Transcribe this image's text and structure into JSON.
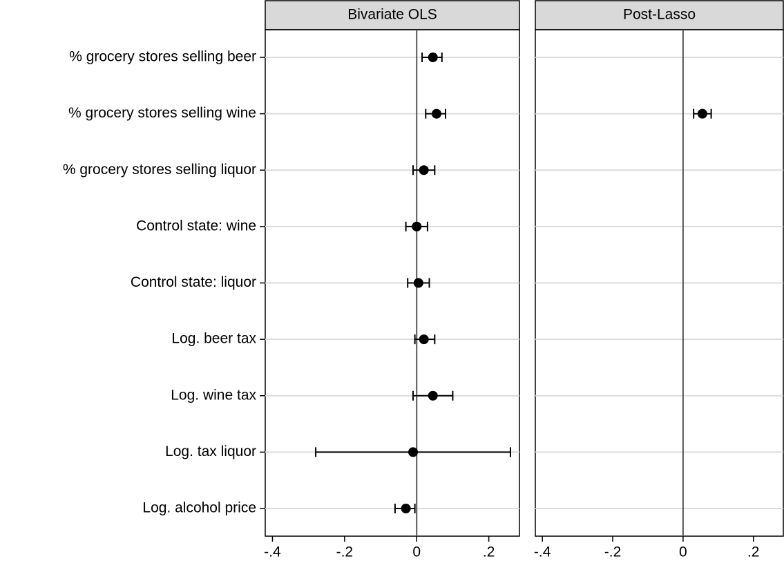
{
  "chart_data": [
    {
      "type": "coefplot",
      "title": "Bivariate OLS",
      "categories": [
        "% grocery stores selling beer",
        "% grocery stores selling wine",
        "% grocery stores selling liquor",
        "Control state: wine",
        "Control state: liquor",
        "Log. beer tax",
        "Log. wine tax",
        "Log. tax liquor",
        "Log. alcohol price"
      ],
      "values": [
        0.045,
        0.055,
        0.02,
        0.0,
        0.005,
        0.02,
        0.045,
        -0.01,
        -0.03
      ],
      "lower": [
        0.015,
        0.025,
        -0.01,
        -0.03,
        -0.025,
        -0.005,
        -0.01,
        -0.28,
        -0.06
      ],
      "upper": [
        0.07,
        0.08,
        0.05,
        0.03,
        0.035,
        0.05,
        0.1,
        0.26,
        -0.005
      ],
      "color": "#000000",
      "xlim": [
        -0.42,
        0.285
      ],
      "xticks": [
        {
          "value": -0.4,
          "label": "-.4"
        },
        {
          "value": -0.2,
          "label": "-.2"
        },
        0,
        {
          "value": 0.2,
          "label": ".2"
        }
      ],
      "grid": true
    },
    {
      "type": "coefplot",
      "title": "Post-Lasso",
      "values": [
        null,
        0.055,
        null,
        null,
        null,
        null,
        null,
        null,
        null
      ],
      "lower": [
        null,
        0.03,
        null,
        null,
        null,
        null,
        null,
        null,
        null
      ],
      "upper": [
        null,
        0.08,
        null,
        null,
        null,
        null,
        null,
        null,
        null
      ],
      "color": "#000000",
      "xlim": [
        -0.42,
        0.285
      ],
      "xticks": [
        {
          "value": -0.4,
          "label": "-.4"
        },
        {
          "value": -0.2,
          "label": "-.2"
        },
        0,
        {
          "value": 0.2,
          "label": ".2"
        }
      ],
      "grid": true
    }
  ]
}
